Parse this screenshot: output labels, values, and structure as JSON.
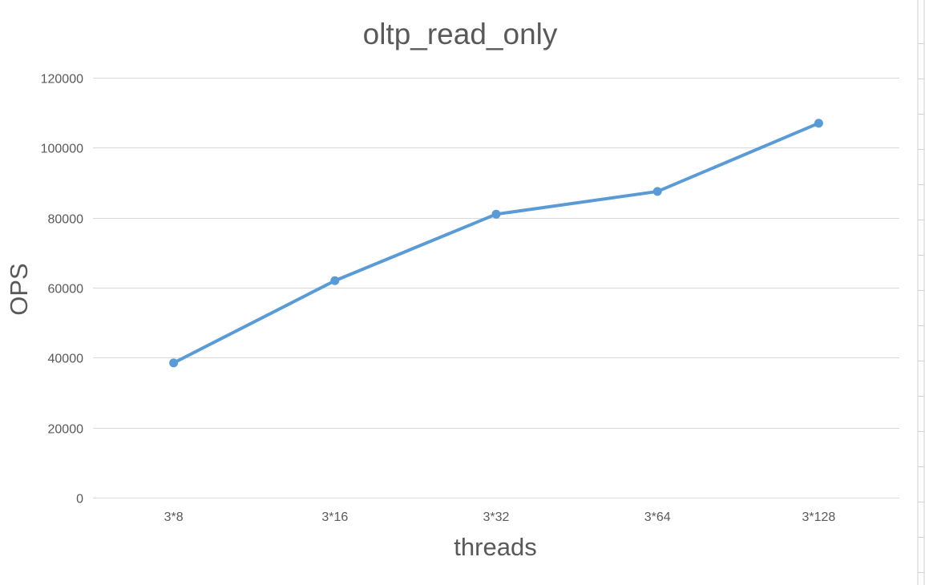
{
  "chart_data": {
    "type": "line",
    "title": "oltp_read_only",
    "xlabel": "threads",
    "ylabel": "OPS",
    "categories": [
      "3*8",
      "3*16",
      "3*32",
      "3*64",
      "3*128"
    ],
    "series": [
      {
        "name": "OPS",
        "values": [
          38500,
          62000,
          81000,
          87500,
          107000
        ],
        "color": "#5b9bd5"
      }
    ],
    "ylim": [
      0,
      120000
    ],
    "yticks": [
      "0",
      "20000",
      "40000",
      "60000",
      "80000",
      "100000",
      "120000"
    ],
    "grid": true,
    "legend": "none"
  }
}
